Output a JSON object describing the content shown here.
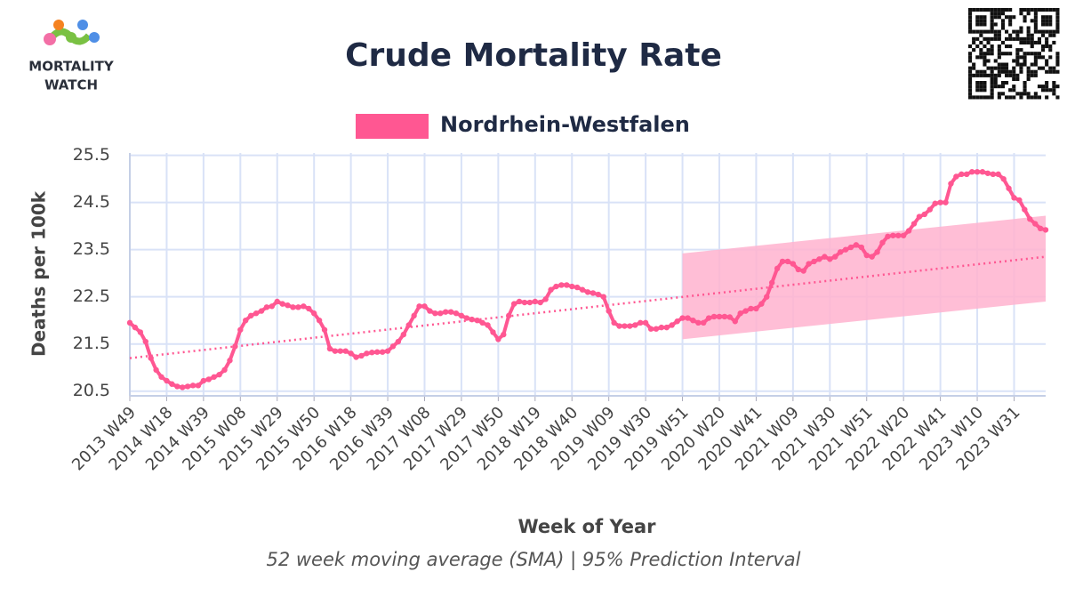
{
  "logo": [
    "MORTALITY",
    "WATCH"
  ],
  "chart_data": {
    "type": "line",
    "title": "Crude Mortality Rate",
    "subtitle": "52 week moving average (SMA) | 95% Prediction Interval",
    "x_label": "Week of Year",
    "y_label": "Deaths per 100k",
    "categories": [
      "2013 W49",
      null,
      null,
      null,
      null,
      null,
      null,
      "2014 W18",
      null,
      null,
      null,
      null,
      null,
      null,
      "2014 W39",
      null,
      null,
      null,
      null,
      null,
      null,
      "2015 W08",
      null,
      null,
      null,
      null,
      null,
      null,
      "2015 W29",
      null,
      null,
      null,
      null,
      null,
      null,
      "2015 W50",
      null,
      null,
      null,
      null,
      null,
      null,
      "2016 W18",
      null,
      null,
      null,
      null,
      null,
      null,
      "2016 W39",
      null,
      null,
      null,
      null,
      null,
      null,
      "2017 W08",
      null,
      null,
      null,
      null,
      null,
      null,
      "2017 W29",
      null,
      null,
      null,
      null,
      null,
      null,
      "2017 W50",
      null,
      null,
      null,
      null,
      null,
      null,
      "2018 W19",
      null,
      null,
      null,
      null,
      null,
      null,
      "2018 W40",
      null,
      null,
      null,
      null,
      null,
      null,
      "2019 W09",
      null,
      null,
      null,
      null,
      null,
      null,
      "2019 W30",
      null,
      null,
      null,
      null,
      null,
      null,
      "2019 W51",
      null,
      null,
      null,
      null,
      null,
      null,
      "2020 W20",
      null,
      null,
      null,
      null,
      null,
      null,
      "2020 W41",
      null,
      null,
      null,
      null,
      null,
      null,
      "2021 W09",
      null,
      null,
      null,
      null,
      null,
      null,
      "2021 W30",
      null,
      null,
      null,
      null,
      null,
      null,
      "2021 W51",
      null,
      null,
      null,
      null,
      null,
      null,
      "2022 W20",
      null,
      null,
      null,
      null,
      null,
      null,
      "2022 W41",
      null,
      null,
      null,
      null,
      null,
      null,
      "2023 W10",
      null,
      null,
      null,
      null,
      null,
      null,
      "2023 W31",
      null,
      null,
      null,
      null,
      null,
      null
    ],
    "series": [
      {
        "name": "Nordrhein-Westfalen",
        "color": "#ff5792",
        "values": [
          21.95,
          21.85,
          21.75,
          21.55,
          21.2,
          20.95,
          20.8,
          20.72,
          20.65,
          20.6,
          20.58,
          20.6,
          20.62,
          20.62,
          20.72,
          20.75,
          20.8,
          20.85,
          20.95,
          21.15,
          21.45,
          21.8,
          22.0,
          22.1,
          22.15,
          22.2,
          22.28,
          22.3,
          22.4,
          22.35,
          22.32,
          22.28,
          22.28,
          22.3,
          22.25,
          22.15,
          22.0,
          21.8,
          21.4,
          21.35,
          21.35,
          21.35,
          21.3,
          21.22,
          21.25,
          21.3,
          21.32,
          21.33,
          21.33,
          21.35,
          21.45,
          21.55,
          21.7,
          21.9,
          22.1,
          22.3,
          22.3,
          22.2,
          22.15,
          22.15,
          22.18,
          22.18,
          22.15,
          22.1,
          22.05,
          22.02,
          22.0,
          21.95,
          21.9,
          21.75,
          21.6,
          21.7,
          22.1,
          22.35,
          22.4,
          22.38,
          22.38,
          22.4,
          22.38,
          22.45,
          22.65,
          22.72,
          22.75,
          22.75,
          22.72,
          22.7,
          22.65,
          22.6,
          22.58,
          22.55,
          22.5,
          22.2,
          21.95,
          21.88,
          21.88,
          21.88,
          21.9,
          21.95,
          21.95,
          21.82,
          21.82,
          21.85,
          21.85,
          21.9,
          21.98,
          22.05,
          22.05,
          22.0,
          21.95,
          21.95,
          22.05,
          22.08,
          22.08,
          22.08,
          22.07,
          21.98,
          22.15,
          22.2,
          22.25,
          22.25,
          22.35,
          22.5,
          22.8,
          23.1,
          23.25,
          23.25,
          23.2,
          23.08,
          23.05,
          23.2,
          23.25,
          23.3,
          23.35,
          23.3,
          23.35,
          23.45,
          23.5,
          23.55,
          23.6,
          23.55,
          23.38,
          23.35,
          23.45,
          23.65,
          23.78,
          23.8,
          23.8,
          23.8,
          23.9,
          24.05,
          24.2,
          24.25,
          24.35,
          24.48,
          24.5,
          24.5,
          24.9,
          25.05,
          25.1,
          25.1,
          25.15,
          25.15,
          25.15,
          25.12,
          25.1,
          25.1,
          25.0,
          24.8,
          24.6,
          24.55,
          24.35,
          24.15,
          24.05,
          23.95,
          23.92
        ]
      }
    ],
    "trend": {
      "start": 21.2,
      "end": 23.35,
      "color": "#ff5792"
    },
    "prediction_interval": {
      "start_index": 105,
      "lower": [
        21.6,
        22.4
      ],
      "upper": [
        23.42,
        24.22
      ],
      "color": "#ffb3cf"
    },
    "ylim": [
      20.4,
      25.55
    ],
    "yticks": [
      20.5,
      21.5,
      22.5,
      23.5,
      24.5,
      25.5
    ],
    "grid": true
  }
}
